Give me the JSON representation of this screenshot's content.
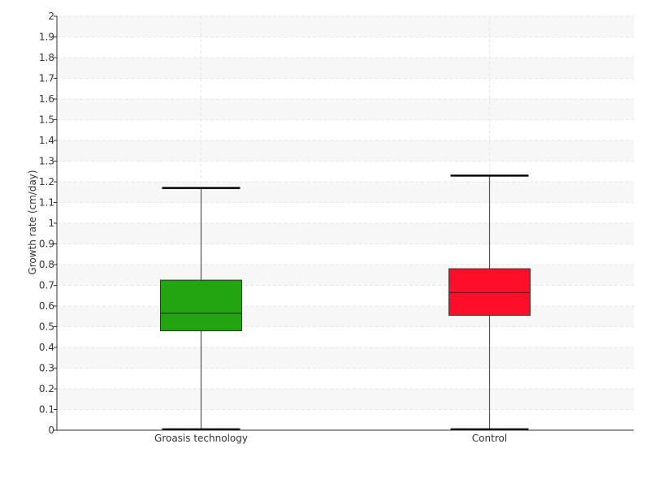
{
  "chart_data": {
    "type": "boxplot",
    "title": "",
    "xlabel": "",
    "ylabel": "Growth rate (cm/day)",
    "ylim": [
      0,
      2
    ],
    "y_ticks": [
      "0",
      "0.1",
      "0.2",
      "0.3",
      "0.4",
      "0.5",
      "0.6",
      "0.7",
      "0.8",
      "0.9",
      "1",
      "1.1",
      "1.2",
      "1.3",
      "1.4",
      "1.5",
      "1.6",
      "1.7",
      "1.8",
      "1.9",
      "2"
    ],
    "grid": true,
    "categories": [
      "Groasis technology",
      "Control"
    ],
    "boxes": [
      {
        "category": "Groasis technology",
        "min": 0.0,
        "q1": 0.48,
        "median": 0.565,
        "q3": 0.725,
        "max": 1.17,
        "color": "#22a511"
      },
      {
        "category": "Control",
        "min": 0.0,
        "q1": 0.555,
        "median": 0.665,
        "q3": 0.78,
        "max": 1.23,
        "color": "#ff0e2a"
      }
    ]
  }
}
